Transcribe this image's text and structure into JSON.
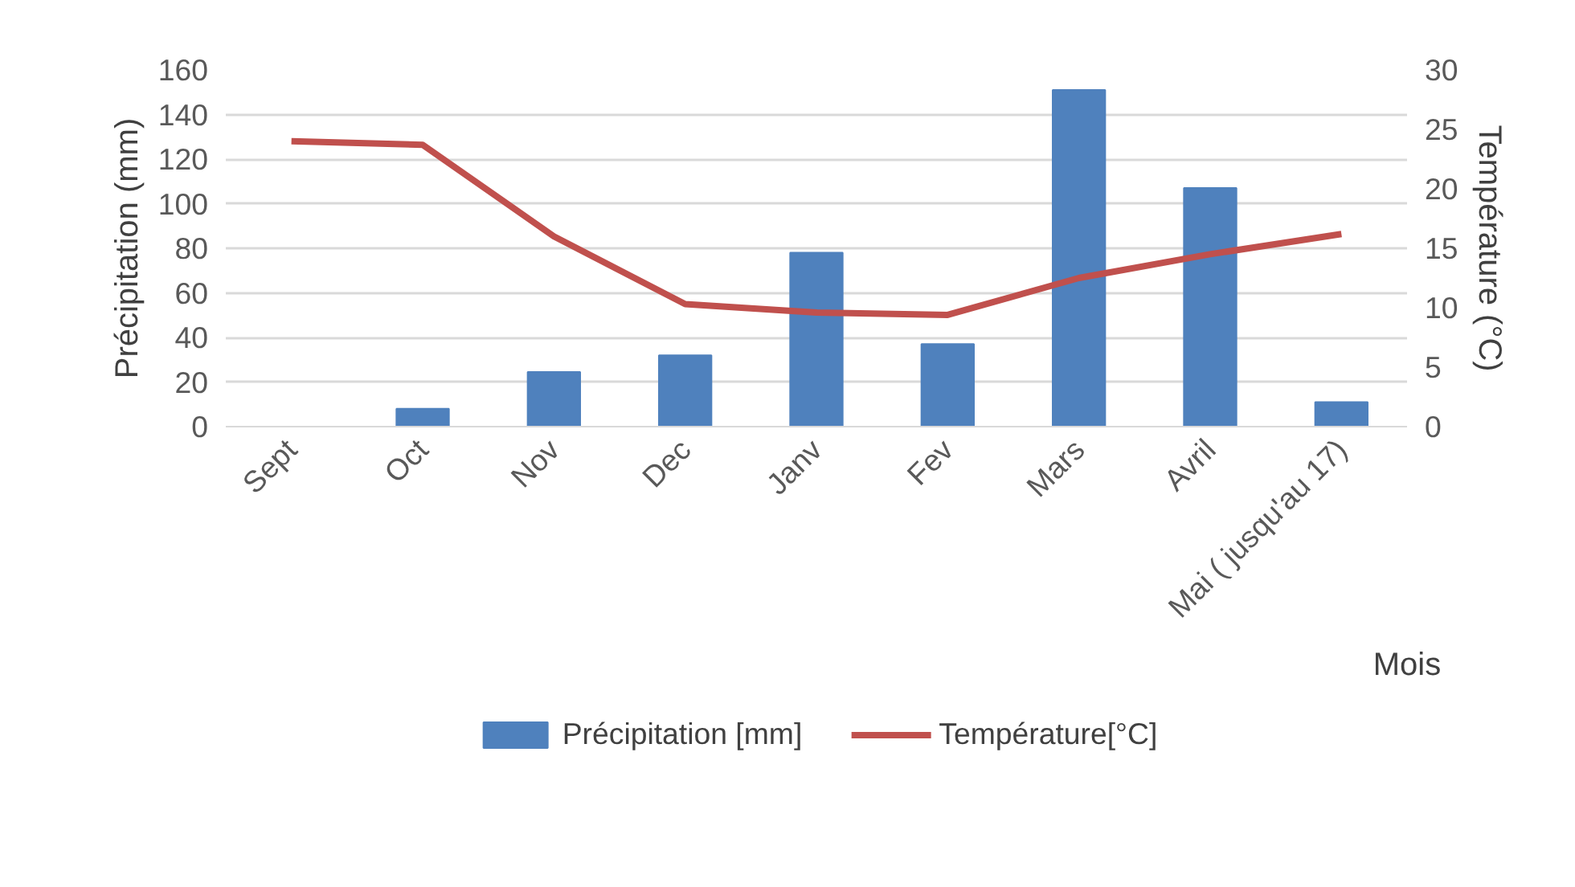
{
  "chart_data": {
    "type": "bar",
    "xlabel": "Mois",
    "ylabel": "Précipitation (mm)",
    "y2label": "Température (°C)",
    "categories": [
      "Sept",
      "Oct",
      "Nov",
      "Dec",
      "Janv",
      "Fev",
      "Mars",
      "Avril",
      "Mai ( jusqu'au 17)"
    ],
    "series": [
      {
        "name": "Précipitation [mm]",
        "color": "#4f81bd",
        "values": [
          0,
          8,
          24.5,
          32,
          78,
          37,
          151,
          107,
          11
        ]
      },
      {
        "name": "Température[°C]",
        "type": "line",
        "axis": "y2",
        "color": "#c0504d",
        "values": [
          24,
          23.7,
          16,
          10.3,
          9.6,
          9.4,
          12.5,
          14.5,
          16.2
        ]
      }
    ],
    "ylim": [
      0,
      160
    ],
    "yticks": [
      0,
      20,
      40,
      60,
      80,
      100,
      120,
      140,
      160
    ],
    "y2lim": [
      0,
      30
    ],
    "y2ticks": [
      0,
      5,
      10,
      15,
      20,
      25,
      30
    ],
    "grid": "y",
    "legend": "bottom"
  }
}
